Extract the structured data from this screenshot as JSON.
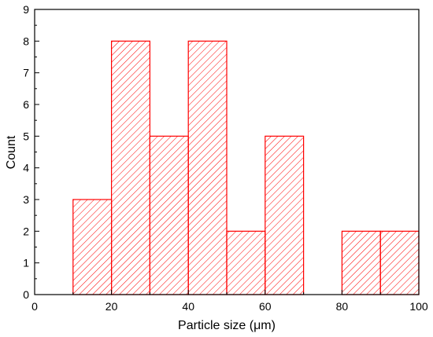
{
  "chart_data": {
    "type": "bar",
    "title": "",
    "xlabel": "Particle size (μm)",
    "ylabel": "Count",
    "xlim": [
      0,
      100
    ],
    "ylim": [
      0,
      9
    ],
    "x_ticks": [
      "0",
      "20",
      "40",
      "60",
      "80",
      "100"
    ],
    "y_ticks": [
      "0",
      "1",
      "2",
      "3",
      "4",
      "5",
      "6",
      "7",
      "8",
      "9"
    ],
    "bins": [
      {
        "start": 10,
        "end": 20,
        "count": 3
      },
      {
        "start": 20,
        "end": 30,
        "count": 8
      },
      {
        "start": 30,
        "end": 40,
        "count": 5
      },
      {
        "start": 40,
        "end": 50,
        "count": 8
      },
      {
        "start": 50,
        "end": 60,
        "count": 2
      },
      {
        "start": 60,
        "end": 70,
        "count": 5
      },
      {
        "start": 80,
        "end": 90,
        "count": 2
      },
      {
        "start": 90,
        "end": 100,
        "count": 2
      }
    ],
    "bar_color": "#ff0000",
    "fill_pattern": "diagonal-hatch",
    "grid": false,
    "legend": "none"
  }
}
